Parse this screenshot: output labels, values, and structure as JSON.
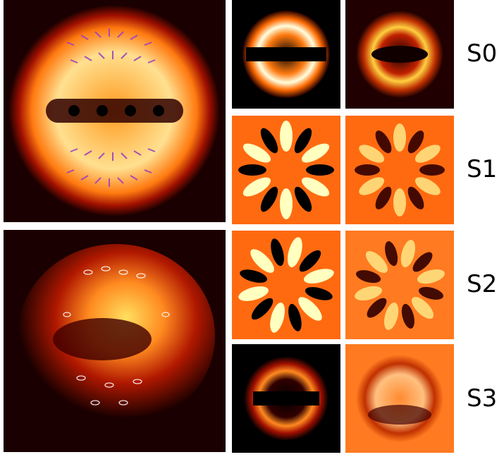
{
  "figure": {
    "labels": {
      "s0": "S0",
      "s1": "S1",
      "s2": "S2",
      "s3": "S3"
    },
    "colormap": [
      "#000000",
      "#5a0000",
      "#c02000",
      "#ff7000",
      "#ffd040",
      "#ffffe0"
    ],
    "background_orange": "#ff6a10",
    "vector_color_theory": "#a040c0",
    "vector_color_experiment": "#ffffff"
  }
}
